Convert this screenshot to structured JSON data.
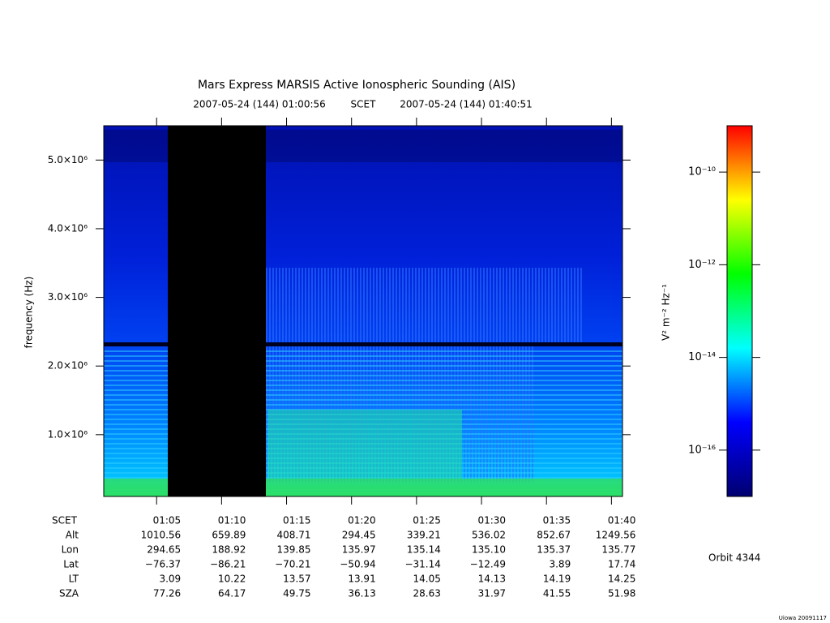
{
  "chart_data": {
    "type": "spectrogram",
    "title": "Mars Express MARSIS Active Ionospheric Sounding (AIS)",
    "subtitle_start": "2007-05-24 (144) 01:00:56",
    "subtitle_mid": "SCET",
    "subtitle_end": "2007-05-24 (144) 01:40:51",
    "ylabel": "frequency (Hz)",
    "xlim": [
      "01:00:56",
      "01:40:51"
    ],
    "xticks": [
      "01:05",
      "01:10",
      "01:15",
      "01:20",
      "01:25",
      "01:30",
      "01:35",
      "01:40"
    ],
    "ylim": [
      100000,
      5500000
    ],
    "yticks": [
      {
        "value": 1000000,
        "label": "1.0×10⁶"
      },
      {
        "value": 2000000,
        "label": "2.0×10⁶"
      },
      {
        "value": 3000000,
        "label": "3.0×10⁶"
      },
      {
        "value": 4000000,
        "label": "4.0×10⁶"
      },
      {
        "value": 5000000,
        "label": "5.0×10⁶"
      }
    ],
    "colorbar": {
      "label": "V² m⁻² Hz⁻¹",
      "log": true,
      "lim": [
        1e-17,
        1e-09
      ],
      "ticks": [
        {
          "value": 1e-10,
          "label": "10⁻¹⁰"
        },
        {
          "value": 1e-12,
          "label": "10⁻¹²"
        },
        {
          "value": 1e-14,
          "label": "10⁻¹⁴"
        },
        {
          "value": 1e-16,
          "label": "10⁻¹⁶"
        }
      ],
      "colors": [
        "#000070",
        "#0000ff",
        "#00ffff",
        "#00ff00",
        "#ffff00",
        "#ff0000"
      ]
    },
    "ephemeris": {
      "time_label": "SCET",
      "rows": [
        {
          "label": "Alt",
          "values": [
            "1010.56",
            "659.89",
            "408.71",
            "294.45",
            "339.21",
            "536.02",
            "852.67",
            "1249.56"
          ]
        },
        {
          "label": "Lon",
          "values": [
            "294.65",
            "188.92",
            "139.85",
            "135.97",
            "135.14",
            "135.10",
            "135.37",
            "135.77"
          ]
        },
        {
          "label": "Lat",
          "values": [
            "−76.37",
            "−86.21",
            "−70.21",
            "−50.94",
            "−31.14",
            "−12.49",
            "3.89",
            "17.74"
          ]
        },
        {
          "label": "LT",
          "values": [
            "3.09",
            "10.22",
            "13.57",
            "13.91",
            "14.05",
            "14.13",
            "14.19",
            "14.25"
          ]
        },
        {
          "label": "SZA",
          "values": [
            "77.26",
            "64.17",
            "49.75",
            "36.13",
            "28.63",
            "31.97",
            "41.55",
            "51.98"
          ]
        }
      ]
    },
    "orbit": "Orbit 4344",
    "credit": "Uiowa 20091117"
  }
}
